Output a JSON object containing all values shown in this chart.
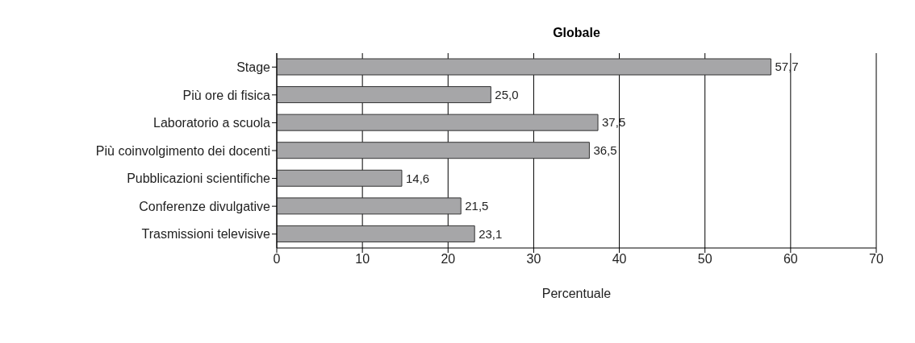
{
  "chart_data": {
    "type": "bar",
    "orientation": "horizontal",
    "title": "Globale",
    "xlabel": "Percentuale",
    "categories": [
      "Stage",
      "Più ore di fisica",
      "Laboratorio a scuola",
      "Più coinvolgimento dei docenti",
      "Pubblicazioni scientifiche",
      "Conferenze divulgative",
      "Trasmissioni televisive"
    ],
    "values": [
      57.7,
      25.0,
      37.5,
      36.5,
      14.6,
      21.5,
      23.1
    ],
    "value_labels": [
      "57,7",
      "25,0",
      "37,5",
      "36,5",
      "14,6",
      "21,5",
      "23,1"
    ],
    "color": "#a6a6a8",
    "xlim": [
      0,
      70
    ],
    "xticks": [
      0,
      10,
      20,
      30,
      40,
      50,
      60,
      70
    ],
    "grid": "x"
  }
}
